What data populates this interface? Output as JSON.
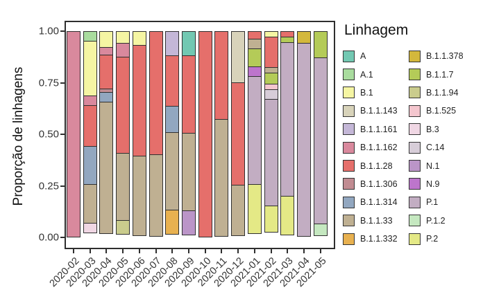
{
  "figure": {
    "y_axis_label": "Proporção de linhagens",
    "legend_title": "Linhagem"
  },
  "axis": {
    "y_ticks": [
      "0.00",
      "0.25",
      "0.50",
      "0.75",
      "1.00"
    ]
  },
  "chart_data": {
    "type": "bar",
    "stacked": true,
    "title": "",
    "xlabel": "",
    "ylabel": "Proporção de linhagens",
    "ylim": [
      0,
      1.0
    ],
    "grid": false,
    "legend_title": "Linhagem",
    "legend_position": "right",
    "categories": [
      "2020-02",
      "2020-03",
      "2020-04",
      "2020-05",
      "2020-06",
      "2020-07",
      "2020-08",
      "2020-09",
      "2020-10",
      "2020-11",
      "2020-12",
      "2021-01",
      "2021-02",
      "2021-03",
      "2021-04",
      "2021-05"
    ],
    "series": [
      {
        "name": "A",
        "color": "#72c8b2",
        "values": [
          0,
          0,
          0,
          0,
          0,
          0,
          0,
          0.12,
          0,
          0,
          0,
          0,
          0,
          0,
          0,
          0
        ]
      },
      {
        "name": "A.1",
        "color": "#a9dc9e",
        "values": [
          0,
          0.05,
          0,
          0,
          0,
          0,
          0,
          0,
          0,
          0,
          0,
          0,
          0,
          0,
          0,
          0
        ]
      },
      {
        "name": "B.1",
        "color": "#f5f5a3",
        "values": [
          0,
          0.27,
          0.08,
          0.06,
          0.07,
          0,
          0,
          0,
          0,
          0,
          0,
          0,
          0.03,
          0,
          0,
          0
        ]
      },
      {
        "name": "B.1.1.143",
        "color": "#d8d3ba",
        "values": [
          0,
          0,
          0,
          0,
          0,
          0,
          0,
          0,
          0,
          0,
          0.25,
          0,
          0,
          0,
          0,
          0
        ]
      },
      {
        "name": "B.1.1.161",
        "color": "#c4b7d7",
        "values": [
          0,
          0,
          0,
          0,
          0,
          0,
          0.12,
          0,
          0,
          0,
          0,
          0,
          0,
          0,
          0,
          0
        ]
      },
      {
        "name": "B.1.1.162",
        "color": "#d9899d",
        "values": [
          1.0,
          0.05,
          0.04,
          0.07,
          0,
          0,
          0,
          0,
          0,
          0,
          0,
          0,
          0,
          0,
          0,
          0
        ]
      },
      {
        "name": "B.1.1.28",
        "color": "#e56f6b",
        "values": [
          0,
          0.2,
          0.17,
          0.47,
          0.54,
          0.6,
          0.25,
          0.38,
          1.0,
          0.43,
          0.5,
          0.04,
          0.15,
          0.03,
          0,
          0
        ]
      },
      {
        "name": "B.1.1.306",
        "color": "#c18c92",
        "values": [
          0,
          0,
          0.02,
          0,
          0,
          0,
          0,
          0,
          0,
          0,
          0,
          0,
          0,
          0,
          0,
          0
        ]
      },
      {
        "name": "B.1.1.314",
        "color": "#92a7c0",
        "values": [
          0,
          0.19,
          0.05,
          0,
          0,
          0,
          0.13,
          0,
          0,
          0,
          0,
          0,
          0,
          0,
          0,
          0
        ]
      },
      {
        "name": "B.1.1.33",
        "color": "#bfb092",
        "values": [
          0,
          0.19,
          0.64,
          0.33,
          0.39,
          0.4,
          0.38,
          0.38,
          0,
          0.57,
          0.25,
          0.05,
          0.03,
          0,
          0,
          0
        ]
      },
      {
        "name": "B.1.1.332",
        "color": "#e8b150",
        "values": [
          0,
          0,
          0,
          0,
          0,
          0,
          0.12,
          0,
          0,
          0,
          0,
          0,
          0,
          0,
          0,
          0
        ]
      },
      {
        "name": "B.1.1.378",
        "color": "#d3b83c",
        "values": [
          0,
          0,
          0,
          0,
          0,
          0,
          0,
          0,
          0,
          0,
          0,
          0,
          0,
          0,
          0.06,
          0
        ]
      },
      {
        "name": "B.1.1.7",
        "color": "#b4cb58",
        "values": [
          0,
          0,
          0,
          0,
          0,
          0,
          0,
          0,
          0,
          0,
          0,
          0.09,
          0.06,
          0.03,
          0,
          0.13
        ]
      },
      {
        "name": "B.1.1.94",
        "color": "#cacc8d",
        "values": [
          0,
          0,
          0,
          0.07,
          0,
          0,
          0,
          0,
          0,
          0,
          0,
          0,
          0,
          0,
          0,
          0
        ]
      },
      {
        "name": "B.1.525",
        "color": "#f4c6ce",
        "values": [
          0,
          0,
          0,
          0,
          0,
          0,
          0,
          0,
          0,
          0,
          0,
          0,
          0.03,
          0,
          0,
          0
        ]
      },
      {
        "name": "B.3",
        "color": "#f0d7e4",
        "values": [
          0,
          0.05,
          0,
          0,
          0,
          0,
          0,
          0,
          0,
          0,
          0,
          0,
          0,
          0,
          0,
          0
        ]
      },
      {
        "name": "C.14",
        "color": "#d7cdd8",
        "values": [
          0,
          0,
          0,
          0,
          0,
          0,
          0,
          0,
          0,
          0,
          0,
          0,
          0.05,
          0,
          0,
          0
        ]
      },
      {
        "name": "N.1",
        "color": "#bb95c8",
        "values": [
          0,
          0,
          0,
          0,
          0,
          0,
          0,
          0.12,
          0,
          0,
          0,
          0,
          0,
          0,
          0,
          0
        ]
      },
      {
        "name": "N.9",
        "color": "#bd75cc",
        "values": [
          0,
          0,
          0,
          0,
          0,
          0,
          0,
          0,
          0,
          0,
          0,
          0.05,
          0,
          0,
          0,
          0
        ]
      },
      {
        "name": "P.1",
        "color": "#c2adc2",
        "values": [
          0,
          0,
          0,
          0,
          0,
          0,
          0,
          0,
          0,
          0,
          0,
          0.53,
          0.52,
          0.75,
          0.94,
          0.81
        ]
      },
      {
        "name": "P.1.2",
        "color": "#c5e8c0",
        "values": [
          0,
          0,
          0,
          0,
          0,
          0,
          0,
          0,
          0,
          0,
          0,
          0,
          0,
          0,
          0,
          0.06
        ]
      },
      {
        "name": "P.2",
        "color": "#e4e986",
        "values": [
          0,
          0,
          0,
          0,
          0,
          0,
          0,
          0,
          0,
          0,
          0,
          0.24,
          0.13,
          0.19,
          0,
          0
        ]
      }
    ]
  }
}
